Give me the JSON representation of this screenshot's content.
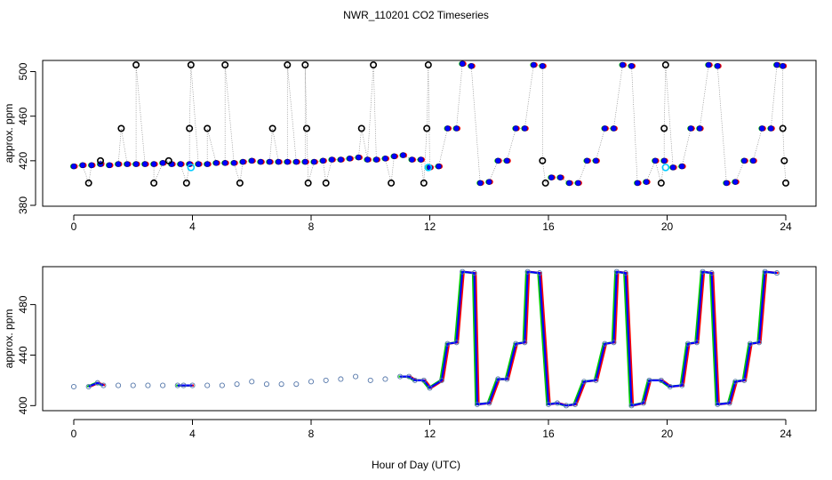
{
  "title": "NWR_110201  CO2 Timeseries",
  "xlabel": "Hour of Day (UTC)",
  "colors": {
    "raw_circle": "#000000",
    "hourly_marker": "#0000ff",
    "series_red": "#ff0000",
    "series_green": "#00cc00",
    "series_cyan": "#00ccff",
    "dotted_line": "#888888"
  },
  "chart_data": [
    {
      "type": "scatter",
      "ylabel": "approx. ppm",
      "xlim": [
        0,
        24
      ],
      "ylim": [
        380,
        510
      ],
      "x_ticks": [
        0,
        4,
        8,
        12,
        16,
        20,
        24
      ],
      "y_ticks": [
        380,
        420,
        460,
        500
      ],
      "grid": false,
      "series": [
        {
          "values": [
            [
              0.0,
              415
            ],
            [
              0.3,
              416
            ],
            [
              0.6,
              416
            ],
            [
              0.9,
              417
            ],
            [
              1.2,
              416
            ],
            [
              1.5,
              417
            ],
            [
              1.8,
              417
            ],
            [
              2.1,
              417
            ],
            [
              2.4,
              417
            ],
            [
              2.7,
              417
            ],
            [
              3.0,
              418
            ],
            [
              3.3,
              417
            ],
            [
              3.6,
              417
            ],
            [
              3.9,
              417
            ],
            [
              4.2,
              417
            ],
            [
              4.5,
              417
            ],
            [
              4.8,
              418
            ],
            [
              5.1,
              418
            ],
            [
              5.4,
              418
            ],
            [
              5.7,
              419
            ],
            [
              6.0,
              420
            ],
            [
              6.3,
              419
            ],
            [
              6.6,
              419
            ],
            [
              6.9,
              419
            ],
            [
              7.2,
              419
            ],
            [
              7.5,
              419
            ],
            [
              7.8,
              419
            ],
            [
              8.1,
              419
            ],
            [
              8.4,
              420
            ],
            [
              8.7,
              421
            ],
            [
              9.0,
              421
            ],
            [
              9.3,
              422
            ],
            [
              9.6,
              423
            ],
            [
              9.9,
              421
            ],
            [
              10.2,
              421
            ],
            [
              10.5,
              422
            ],
            [
              10.8,
              424
            ],
            [
              11.1,
              425
            ],
            [
              11.4,
              421
            ],
            [
              11.7,
              421
            ],
            [
              12.0,
              414
            ],
            [
              12.3,
              415
            ],
            [
              12.6,
              449
            ],
            [
              12.9,
              449
            ],
            [
              13.1,
              507
            ],
            [
              13.4,
              505
            ],
            [
              13.7,
              400
            ],
            [
              14.0,
              401
            ],
            [
              14.3,
              420
            ],
            [
              14.6,
              420
            ],
            [
              14.9,
              449
            ],
            [
              15.2,
              449
            ],
            [
              15.5,
              506
            ],
            [
              15.8,
              505
            ],
            [
              16.1,
              405
            ],
            [
              16.4,
              405
            ],
            [
              16.7,
              400
            ],
            [
              17.0,
              400
            ],
            [
              17.3,
              420
            ],
            [
              17.6,
              420
            ],
            [
              17.9,
              449
            ],
            [
              18.2,
              449
            ],
            [
              18.5,
              506
            ],
            [
              18.8,
              505
            ],
            [
              19.0,
              400
            ],
            [
              19.3,
              401
            ],
            [
              19.6,
              420
            ],
            [
              19.9,
              420
            ],
            [
              20.2,
              414
            ],
            [
              20.5,
              415
            ],
            [
              20.8,
              449
            ],
            [
              21.1,
              449
            ],
            [
              21.4,
              506
            ],
            [
              21.7,
              505
            ],
            [
              22.0,
              400
            ],
            [
              22.3,
              401
            ],
            [
              22.6,
              420
            ],
            [
              22.9,
              420
            ],
            [
              23.2,
              449
            ],
            [
              23.5,
              449
            ],
            [
              23.7,
              506
            ],
            [
              23.9,
              505
            ]
          ]
        }
      ],
      "raw_samples": [
        [
          0.5,
          400
        ],
        [
          0.9,
          420
        ],
        [
          1.6,
          449
        ],
        [
          2.1,
          506
        ],
        [
          2.7,
          400
        ],
        [
          3.2,
          420
        ],
        [
          3.8,
          400
        ],
        [
          3.9,
          449
        ],
        [
          3.95,
          506
        ],
        [
          4.5,
          449
        ],
        [
          5.1,
          506
        ],
        [
          5.6,
          400
        ],
        [
          6.7,
          449
        ],
        [
          7.2,
          506
        ],
        [
          7.8,
          506
        ],
        [
          7.85,
          449
        ],
        [
          7.9,
          400
        ],
        [
          8.5,
          400
        ],
        [
          9.7,
          449
        ],
        [
          10.1,
          506
        ],
        [
          10.7,
          400
        ],
        [
          11.8,
          400
        ],
        [
          11.9,
          449
        ],
        [
          11.95,
          506
        ],
        [
          15.9,
          400
        ],
        [
          15.8,
          420
        ],
        [
          19.8,
          400
        ],
        [
          19.9,
          449
        ],
        [
          19.95,
          506
        ],
        [
          23.9,
          449
        ],
        [
          23.95,
          420
        ],
        [
          24.0,
          400
        ]
      ]
    },
    {
      "type": "line",
      "ylabel": "approx. ppm",
      "xlim": [
        0,
        24
      ],
      "ylim": [
        396,
        510
      ],
      "x_ticks": [
        0,
        4,
        8,
        12,
        16,
        20,
        24
      ],
      "y_ticks": [
        400,
        440,
        480
      ],
      "grid": false,
      "series": [
        {
          "values": [
            [
              0.0,
              415
            ],
            [
              0.5,
              415
            ],
            [
              0.8,
              418
            ],
            [
              1.0,
              416
            ],
            [
              1.5,
              416
            ],
            [
              2.0,
              416
            ],
            [
              2.5,
              416
            ],
            [
              3.0,
              416
            ],
            [
              3.5,
              416
            ],
            [
              3.7,
              416
            ],
            [
              4.0,
              416
            ],
            [
              4.5,
              416
            ],
            [
              5.0,
              416
            ],
            [
              5.5,
              417
            ],
            [
              6.0,
              419
            ],
            [
              6.5,
              417
            ],
            [
              7.0,
              417
            ],
            [
              7.5,
              417
            ],
            [
              8.0,
              419
            ],
            [
              8.5,
              420
            ],
            [
              9.0,
              421
            ],
            [
              9.5,
              423
            ],
            [
              10.0,
              420
            ],
            [
              10.5,
              421
            ],
            [
              11.0,
              423
            ],
            [
              11.3,
              423
            ],
            [
              11.5,
              420
            ],
            [
              11.8,
              420
            ],
            [
              12.0,
              414
            ],
            [
              12.4,
              420
            ],
            [
              12.6,
              449
            ],
            [
              12.9,
              450
            ],
            [
              13.1,
              506
            ],
            [
              13.5,
              505
            ],
            [
              13.6,
              401
            ],
            [
              14.0,
              402
            ],
            [
              14.3,
              421
            ],
            [
              14.6,
              421
            ],
            [
              14.9,
              449
            ],
            [
              15.2,
              450
            ],
            [
              15.3,
              506
            ],
            [
              15.7,
              505
            ],
            [
              16.0,
              401
            ],
            [
              16.3,
              402
            ],
            [
              16.6,
              400
            ],
            [
              16.9,
              401
            ],
            [
              17.2,
              419
            ],
            [
              17.6,
              420
            ],
            [
              17.9,
              449
            ],
            [
              18.2,
              450
            ],
            [
              18.3,
              506
            ],
            [
              18.6,
              505
            ],
            [
              18.8,
              400
            ],
            [
              19.2,
              402
            ],
            [
              19.4,
              420
            ],
            [
              19.8,
              420
            ],
            [
              20.1,
              415
            ],
            [
              20.5,
              416
            ],
            [
              20.7,
              449
            ],
            [
              21.0,
              450
            ],
            [
              21.2,
              506
            ],
            [
              21.5,
              505
            ],
            [
              21.7,
              401
            ],
            [
              22.1,
              402
            ],
            [
              22.3,
              419
            ],
            [
              22.6,
              420
            ],
            [
              22.8,
              449
            ],
            [
              23.1,
              450
            ],
            [
              23.3,
              506
            ],
            [
              23.7,
              505
            ]
          ]
        }
      ]
    }
  ]
}
